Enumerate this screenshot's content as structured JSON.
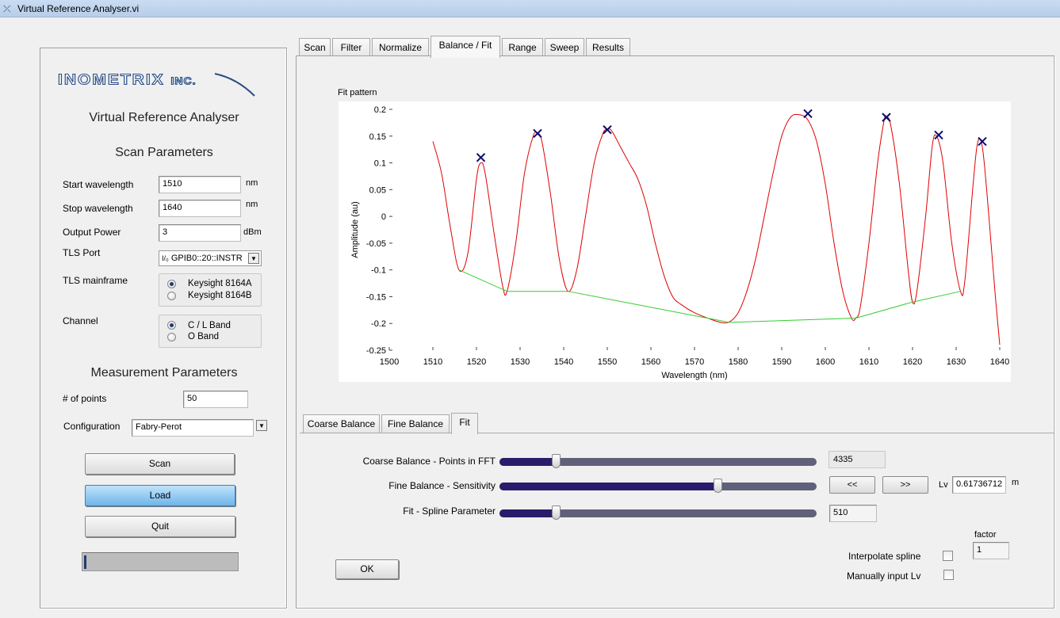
{
  "window": {
    "title": "Virtual Reference Analyser.vi"
  },
  "left": {
    "logo": "INOMETRIX",
    "logo_suffix": "INC.",
    "app_title": "Virtual Reference Analyser",
    "scan_params_title": "Scan Parameters",
    "start_label": "Start wavelength",
    "start_value": "1510",
    "start_unit": "nm",
    "stop_label": "Stop wavelength",
    "stop_value": "1640",
    "stop_unit": "nm",
    "power_label": "Output Power",
    "power_value": "3",
    "power_unit": "dBm",
    "tls_port_label": "TLS Port",
    "tls_port_value": "GPIB0::20::INSTR",
    "tls_mainframe_label": "TLS mainframe",
    "mainframe_options": [
      "Keysight 8164A",
      "Keysight 8164B"
    ],
    "mainframe_selected": 0,
    "channel_label": "Channel",
    "channel_options": [
      "C / L Band",
      "O Band"
    ],
    "channel_selected": 0,
    "meas_params_title": "Measurement Parameters",
    "points_label": "# of points",
    "points_value": "50",
    "config_label": "Configuration",
    "config_value": "Fabry-Perot",
    "buttons": {
      "scan": "Scan",
      "load": "Load",
      "quit": "Quit"
    },
    "progress": 0.01
  },
  "tabs": [
    "Scan",
    "Filter",
    "Normalize",
    "Balance / Fit",
    "Range",
    "Sweep",
    "Results"
  ],
  "selected_tab": "Balance / Fit",
  "chart_data": {
    "type": "line",
    "title": "Fit pattern",
    "xlabel": "Wavelength (nm)",
    "ylabel": "Amplitude (au)",
    "xlim": [
      1500,
      1640
    ],
    "ylim": [
      -0.25,
      0.2
    ],
    "xticks": [
      1500,
      1510,
      1520,
      1530,
      1540,
      1550,
      1560,
      1570,
      1580,
      1590,
      1600,
      1610,
      1620,
      1630,
      1640
    ],
    "yticks": [
      0.2,
      0.15,
      0.1,
      0.05,
      0,
      -0.05,
      -0.1,
      -0.15,
      -0.2,
      -0.25
    ],
    "yticklabels": [
      "0.2",
      "0.15",
      "0.1",
      "0.05",
      "0",
      "-0.05",
      "-0.1",
      "-0.15",
      "-0.2",
      "-0.25"
    ],
    "series": [
      {
        "color": "#e00000",
        "x": [
          1510,
          1512,
          1514,
          1516,
          1518,
          1520,
          1521,
          1522,
          1524,
          1526,
          1527,
          1529,
          1531,
          1533,
          1534,
          1535,
          1537,
          1539,
          1541,
          1543,
          1545,
          1547,
          1549,
          1550,
          1551,
          1553,
          1555,
          1557,
          1559,
          1561,
          1563,
          1565,
          1567,
          1570,
          1573,
          1576,
          1578,
          1580,
          1582,
          1584,
          1586,
          1588,
          1590,
          1592,
          1594,
          1596,
          1598,
          1600,
          1602,
          1604,
          1606,
          1607,
          1608,
          1610,
          1612,
          1613.5,
          1614,
          1615,
          1617,
          1619,
          1620,
          1621,
          1623,
          1624.5,
          1625.5,
          1627,
          1629,
          1631,
          1632,
          1634,
          1635,
          1636,
          1637,
          1638,
          1639,
          1640
        ],
        "y": [
          0.14,
          0.08,
          -0.02,
          -0.1,
          -0.07,
          0.07,
          0.1,
          0.08,
          -0.03,
          -0.13,
          -0.14,
          -0.05,
          0.08,
          0.15,
          0.155,
          0.14,
          0.04,
          -0.08,
          -0.14,
          -0.1,
          0.0,
          0.1,
          0.155,
          0.162,
          0.16,
          0.13,
          0.1,
          0.07,
          0.02,
          -0.05,
          -0.11,
          -0.15,
          -0.165,
          -0.18,
          -0.19,
          -0.198,
          -0.197,
          -0.18,
          -0.14,
          -0.08,
          0.0,
          0.08,
          0.15,
          0.185,
          0.19,
          0.18,
          0.14,
          0.06,
          -0.05,
          -0.14,
          -0.19,
          -0.19,
          -0.17,
          -0.05,
          0.1,
          0.18,
          0.185,
          0.17,
          0.06,
          -0.1,
          -0.16,
          -0.14,
          0.0,
          0.13,
          0.15,
          0.1,
          -0.05,
          -0.14,
          -0.12,
          0.07,
          0.14,
          0.13,
          0.05,
          -0.05,
          -0.15,
          -0.24
        ]
      },
      {
        "color": "#33cc33",
        "x": [
          1516,
          1527,
          1541,
          1578,
          1607,
          1620,
          1631
        ],
        "y": [
          -0.1,
          -0.14,
          -0.14,
          -0.198,
          -0.19,
          -0.16,
          -0.14
        ]
      },
      {
        "color": "#0c0c6a",
        "marker": "x",
        "x": [
          1521,
          1534,
          1550,
          1596,
          1614,
          1626,
          1636
        ],
        "y": [
          0.11,
          0.155,
          0.162,
          0.192,
          0.185,
          0.152,
          0.14
        ]
      }
    ]
  },
  "subtabs": [
    "Coarse Balance",
    "Fine Balance",
    "Fit"
  ],
  "selected_subtab": "Fit",
  "controls": {
    "coarse_label": "Coarse Balance - Points in FFT",
    "coarse_value": "4335",
    "coarse_level": 0.18,
    "fine_label": "Fine Balance - Sensitivity",
    "fine_level": 0.69,
    "prev_btn": "<<",
    "next_btn": ">>",
    "lv_label": "Lv",
    "lv_value": "0.61736712",
    "lv_unit": "m",
    "spline_label": "Fit - Spline Parameter",
    "spline_value": "510",
    "spline_level": 0.18,
    "factor_label": "factor",
    "factor_value": "1",
    "interp_label": "Interpolate spline",
    "manual_label": "Manually input Lv",
    "ok": "OK"
  }
}
